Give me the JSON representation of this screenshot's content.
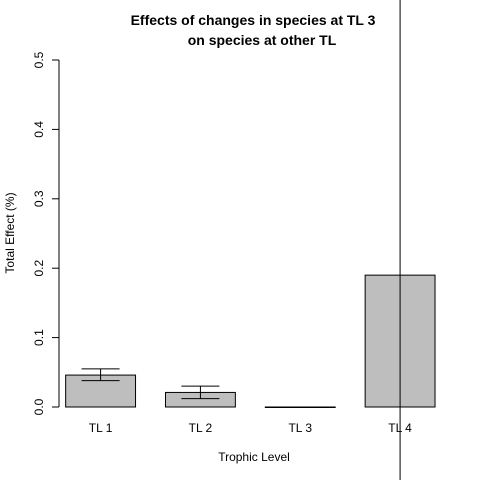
{
  "chart_data": {
    "type": "bar",
    "title_line1": "Effects of changes in species at TL 3",
    "title_line2": "on species at other TL",
    "xlabel": "Trophic Level",
    "ylabel": "Total Effect (%)",
    "categories": [
      "TL 1",
      "TL 2",
      "TL 3",
      "TL 4"
    ],
    "values": [
      0.046,
      0.021,
      0.0,
      0.19
    ],
    "error_low": [
      0.038,
      0.012,
      0.0,
      0.19
    ],
    "error_high": [
      0.055,
      0.03,
      0.0,
      0.19
    ],
    "ylim": [
      0,
      0.5
    ],
    "yticks": [
      "0.0",
      "0.1",
      "0.2",
      "0.3",
      "0.4",
      "0.5"
    ],
    "reference_line_category": "TL 4",
    "bar_fill": "#bebebe",
    "bar_stroke": "#000000",
    "reference_line_color": "#000000",
    "grid": false
  }
}
